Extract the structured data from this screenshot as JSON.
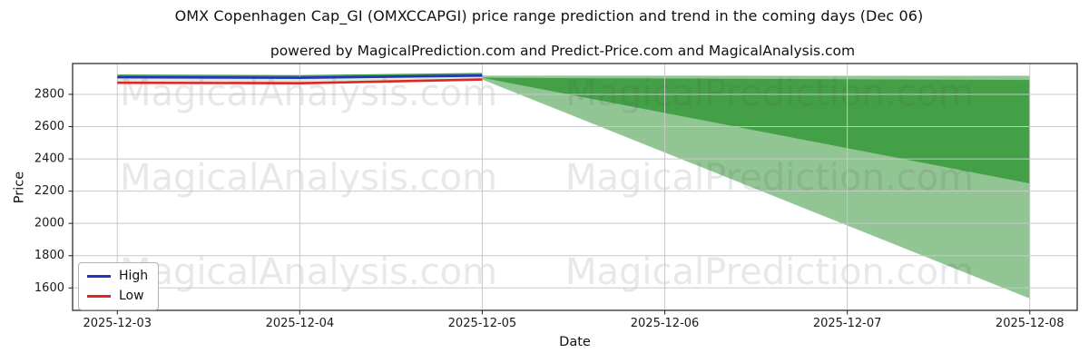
{
  "chart_data": {
    "type": "line",
    "title": "OMX Copenhagen Cap_GI (OMXCCAPGI) price range prediction and trend in the coming days (Dec 06)",
    "subtitle": "powered by MagicalPrediction.com and Predict-Price.com and MagicalAnalysis.com",
    "xlabel": "Date",
    "ylabel": "Price",
    "x_ticks": [
      "2025-12-03",
      "2025-12-04",
      "2025-12-05",
      "2025-12-06",
      "2025-12-07",
      "2025-12-08"
    ],
    "y_ticks": [
      1600,
      1800,
      2000,
      2200,
      2400,
      2600,
      2800
    ],
    "ylim": [
      1461,
      2991
    ],
    "xlim": [
      -0.245,
      5.26
    ],
    "grid": true,
    "legend_position": "lower left",
    "series": [
      {
        "name": "High",
        "color": "#2333c0",
        "x": [
          0,
          1,
          2
        ],
        "values": [
          2906,
          2903,
          2916
        ]
      },
      {
        "name": "Low",
        "color": "#e02525",
        "x": [
          0,
          1,
          2
        ],
        "values": [
          2872,
          2869,
          2892
        ]
      }
    ],
    "history_band": {
      "x": [
        0,
        1,
        2
      ],
      "top": [
        2917,
        2914,
        2927
      ],
      "bottom": [
        2872,
        2869,
        2892
      ],
      "fill": "#d7ebd7",
      "edge_color": "#3f9f43"
    },
    "prediction_cone": {
      "x_start": 2,
      "x_end": 5,
      "outer_band": {
        "color": "#92c594",
        "start_top": 2916,
        "start_bottom": 2892,
        "end_top": 2915,
        "end_bottom": 1535
      },
      "inner_band": {
        "color": "#43a046",
        "start_top": 2903,
        "start_bottom": 2903,
        "end_top": 2889,
        "end_bottom": 2248
      }
    },
    "legend": [
      {
        "label": "High",
        "color": "#2333c0"
      },
      {
        "label": "Low",
        "color": "#e02525"
      }
    ],
    "watermarks": {
      "color": "rgba(80,80,80,0.13)",
      "font_size": 40,
      "rows": [
        {
          "y": 103,
          "items": [
            {
              "x": 340,
              "text": "MagicalAnalysis.com"
            },
            {
              "x": 848,
              "text": "MagicalPrediction.com"
            }
          ]
        },
        {
          "y": 196,
          "items": [
            {
              "x": 340,
              "text": "MagicalAnalysis.com"
            },
            {
              "x": 848,
              "text": "MagicalPrediction.com"
            }
          ]
        },
        {
          "y": 300,
          "items": [
            {
              "x": 340,
              "text": "MagicalAnalysis.com"
            },
            {
              "x": 848,
              "text": "MagicalPrediction.com"
            }
          ]
        }
      ]
    },
    "style": {
      "grid_color": "#c8c8c8",
      "spine_color": "#2e2e2e",
      "tick_color": "#2e2e2e",
      "tick_label_color": "#1a1a1a",
      "tick_label_size": 13
    }
  }
}
